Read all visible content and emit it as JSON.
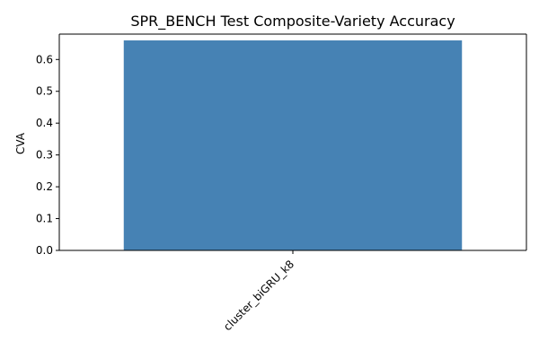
{
  "chart_data": {
    "type": "bar",
    "title": "SPR_BENCH Test Composite-Variety Accuracy",
    "xlabel": "",
    "ylabel": "CVA",
    "categories": [
      "cluster_biGRU_k8"
    ],
    "values": [
      0.66
    ],
    "ylim": [
      0,
      0.6798
    ],
    "yticks": [
      0.0,
      0.1,
      0.2,
      0.3,
      0.4,
      0.5,
      0.6
    ],
    "ytick_labels": [
      "0.0",
      "0.1",
      "0.2",
      "0.3",
      "0.4",
      "0.5",
      "0.6"
    ],
    "grid": false,
    "legend": "none",
    "bar_color": "#4682b4"
  }
}
